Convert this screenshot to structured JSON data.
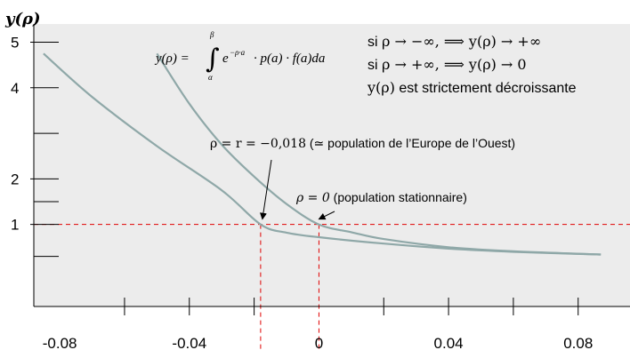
{
  "chart_data": {
    "type": "line",
    "axis_title_y": "y(ρ)",
    "x_ticks": [
      {
        "value": -0.08,
        "label": "-0.08"
      },
      {
        "value": -0.04,
        "label": "-0.04"
      },
      {
        "value": 0,
        "label": "0"
      },
      {
        "value": 0.04,
        "label": "0.04"
      },
      {
        "value": 0.08,
        "label": "0.08"
      }
    ],
    "y_ticks": [
      {
        "value": 1,
        "label": "1"
      },
      {
        "value": 2,
        "label": "2"
      },
      {
        "value": 4,
        "label": "4"
      },
      {
        "value": 5,
        "label": "5"
      }
    ],
    "xlim": [
      -0.088,
      0.096
    ],
    "ylim": [
      -0.8,
      5.4
    ],
    "grid": false,
    "series": [
      {
        "color": "#8fa8a8",
        "x": [
          -0.085,
          -0.07,
          -0.05,
          -0.03,
          -0.018,
          -0.01,
          0,
          0.02,
          0.04,
          0.06,
          0.087
        ],
        "y": [
          4.75,
          3.8,
          2.72,
          1.75,
          1.0,
          0.82,
          0.72,
          0.58,
          0.47,
          0.4,
          0.34
        ]
      },
      {
        "color": "#8fa8a8",
        "x": [
          -0.05,
          -0.04,
          -0.03,
          -0.02,
          -0.01,
          0,
          0.01,
          0.02,
          0.04,
          0.06,
          0.087
        ],
        "y": [
          4.75,
          3.65,
          2.75,
          2.05,
          1.45,
          1.0,
          0.83,
          0.68,
          0.5,
          0.41,
          0.34
        ]
      }
    ],
    "reference_lines": {
      "color": "#e00000",
      "horizontal_y": 1,
      "vertical_x": [
        -0.018,
        0
      ]
    },
    "formula": {
      "lhs": "y(ρ) =",
      "integrand": "e",
      "exponent": "−ρ·a",
      "rest": "· p(a) · f(a)da",
      "upper": "β",
      "lower": "α"
    },
    "notes": [
      {
        "prefix": "si ",
        "math": "ρ → −∞, ⟹ y(ρ) → +∞"
      },
      {
        "prefix": "si ",
        "math": "ρ → +∞, ⟹ y(ρ) → 0"
      },
      {
        "math": "y(ρ)",
        "suffix": " est strictement décroissante"
      }
    ],
    "annotations": [
      {
        "math": "ρ = r = −0,018",
        "text": " (≃ population de l’Europe de l’Ouest)",
        "target_x": -0.018,
        "target_y": 1
      },
      {
        "math": "ρ = 0",
        "text": " (population stationnaire)",
        "target_x": 0,
        "target_y": 1
      }
    ]
  }
}
